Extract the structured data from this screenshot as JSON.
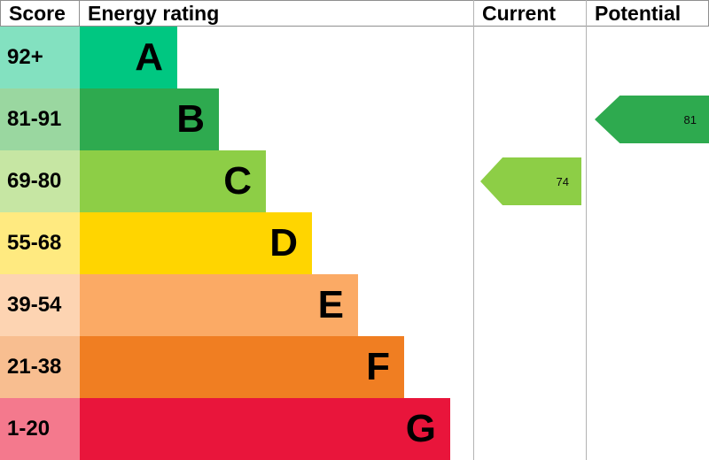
{
  "header": {
    "score": "Score",
    "energy_rating": "Energy rating",
    "current": "Current",
    "potential": "Potential"
  },
  "chart_data": {
    "type": "bar",
    "title": "Energy rating",
    "bands": [
      {
        "letter": "A",
        "score": "92+",
        "color": "#00c781",
        "tint": "#83e1c0",
        "width_frac": 0.248
      },
      {
        "letter": "B",
        "score": "81-91",
        "color": "#2eaa4f",
        "tint": "#9ad7a0",
        "width_frac": 0.354
      },
      {
        "letter": "C",
        "score": "69-80",
        "color": "#8dce46",
        "tint": "#c6e6a3",
        "width_frac": 0.473
      },
      {
        "letter": "D",
        "score": "55-68",
        "color": "#ffd500",
        "tint": "#ffea80",
        "width_frac": 0.59
      },
      {
        "letter": "E",
        "score": "39-54",
        "color": "#fbaa65",
        "tint": "#fdd4b2",
        "width_frac": 0.707
      },
      {
        "letter": "F",
        "score": "21-38",
        "color": "#f07e22",
        "tint": "#f8be90",
        "width_frac": 0.824
      },
      {
        "letter": "G",
        "score": "1-20",
        "color": "#e9153b",
        "tint": "#f4798d",
        "width_frac": 0.941
      }
    ],
    "current": {
      "value": 74,
      "band": "C",
      "color": "#8dce46"
    },
    "potential": {
      "value": 81,
      "band": "B",
      "color": "#2eaa4f"
    }
  }
}
